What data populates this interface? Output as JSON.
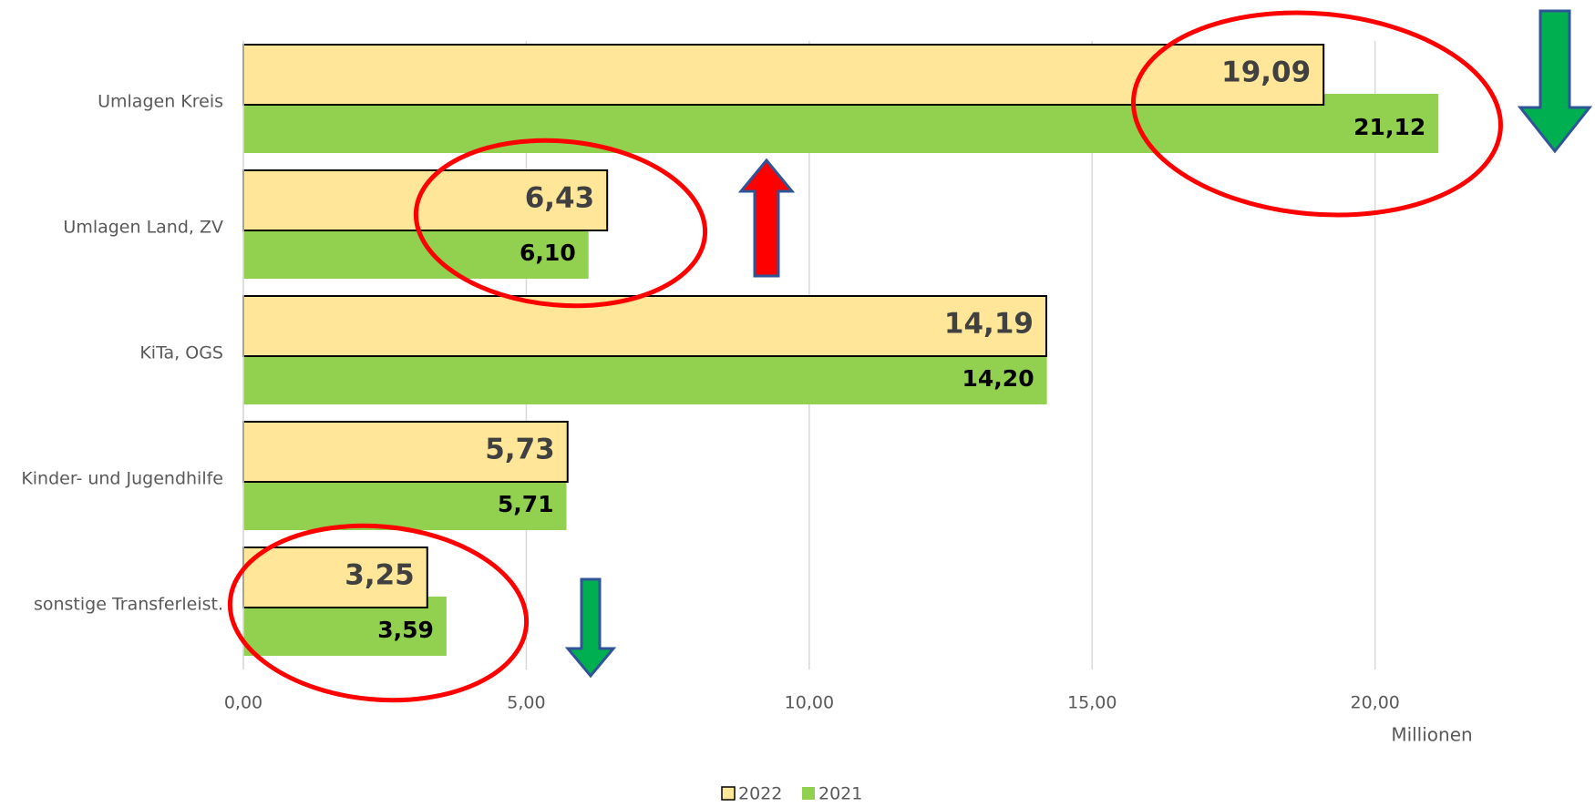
{
  "chart_data": {
    "type": "hbar",
    "categories": [
      "Umlagen Kreis",
      "Umlagen Land, ZV",
      "KiTa, OGS",
      "Kinder- und Jugendhilfe",
      "sonstige Transferleist."
    ],
    "series": [
      {
        "name": "2022",
        "color": "#FFE699",
        "values": [
          19.09,
          6.43,
          14.19,
          5.73,
          3.25
        ],
        "value_labels": [
          "19,09",
          "6,43",
          "14,19",
          "5,73",
          "3,25"
        ]
      },
      {
        "name": "2021",
        "color": "#92D050",
        "values": [
          21.12,
          6.1,
          14.2,
          5.71,
          3.59
        ],
        "value_labels": [
          "21,12",
          "6,10",
          "14,20",
          "5,71",
          "3,59"
        ]
      }
    ],
    "xlim": [
      0,
      23.5
    ],
    "xticks": [
      {
        "value": 0,
        "label": "0,00"
      },
      {
        "value": 5,
        "label": "5,00"
      },
      {
        "value": 10,
        "label": "10,00"
      },
      {
        "value": 15,
        "label": "15,00"
      },
      {
        "value": 20,
        "label": "20,00"
      }
    ],
    "xlabel": "Millionen",
    "grid": true,
    "legend": "bottom"
  }
}
